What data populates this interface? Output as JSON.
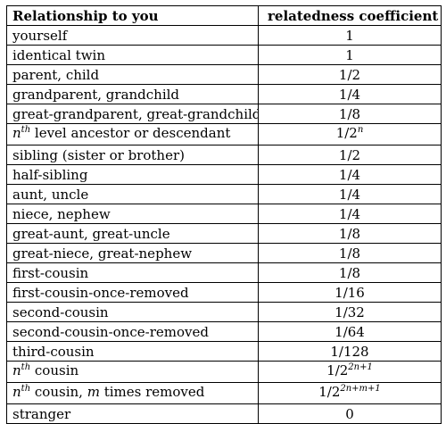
{
  "table": {
    "headers": [
      "Relationship to you",
      "relatedness coefficient"
    ],
    "rows": [
      {
        "rel": "yourself",
        "coef": "1"
      },
      {
        "rel": "identical twin",
        "coef": "1"
      },
      {
        "rel": "parent, child",
        "coef": "1/2"
      },
      {
        "rel": "grandparent, grandchild",
        "coef": "1/4"
      },
      {
        "rel": "great-grandparent, great-grandchild",
        "coef": "1/8"
      },
      {
        "rel_base": "n",
        "rel_sup": "th",
        "rel_rest": " level ancestor or descendant",
        "coef_base": "1/2",
        "coef_sup": "n"
      },
      {
        "rel": "sibling (sister or brother)",
        "coef": "1/2"
      },
      {
        "rel": "half-sibling",
        "coef": "1/4"
      },
      {
        "rel": "aunt, uncle",
        "coef": "1/4"
      },
      {
        "rel": "niece, nephew",
        "coef": "1/4"
      },
      {
        "rel": "great-aunt, great-uncle",
        "coef": "1/8"
      },
      {
        "rel": "great-niece, great-nephew",
        "coef": "1/8"
      },
      {
        "rel": "first-cousin",
        "coef": "1/8"
      },
      {
        "rel": "first-cousin-once-removed",
        "coef": "1/16"
      },
      {
        "rel": "second-cousin",
        "coef": "1/32"
      },
      {
        "rel": "second-cousin-once-removed",
        "coef": "1/64"
      },
      {
        "rel": "third-cousin",
        "coef": "1/128"
      },
      {
        "rel_base": "n",
        "rel_sup": "th",
        "rel_rest": " cousin",
        "coef_base": "1/2",
        "coef_sup": "2n+1"
      },
      {
        "rel_base": "n",
        "rel_sup": "th",
        "rel_rest": " cousin, ",
        "rel_var": "m",
        "rel_tail": " times removed",
        "coef_base": "1/2",
        "coef_sup": "2n+m+1"
      },
      {
        "rel": "stranger",
        "coef": "0"
      }
    ]
  }
}
